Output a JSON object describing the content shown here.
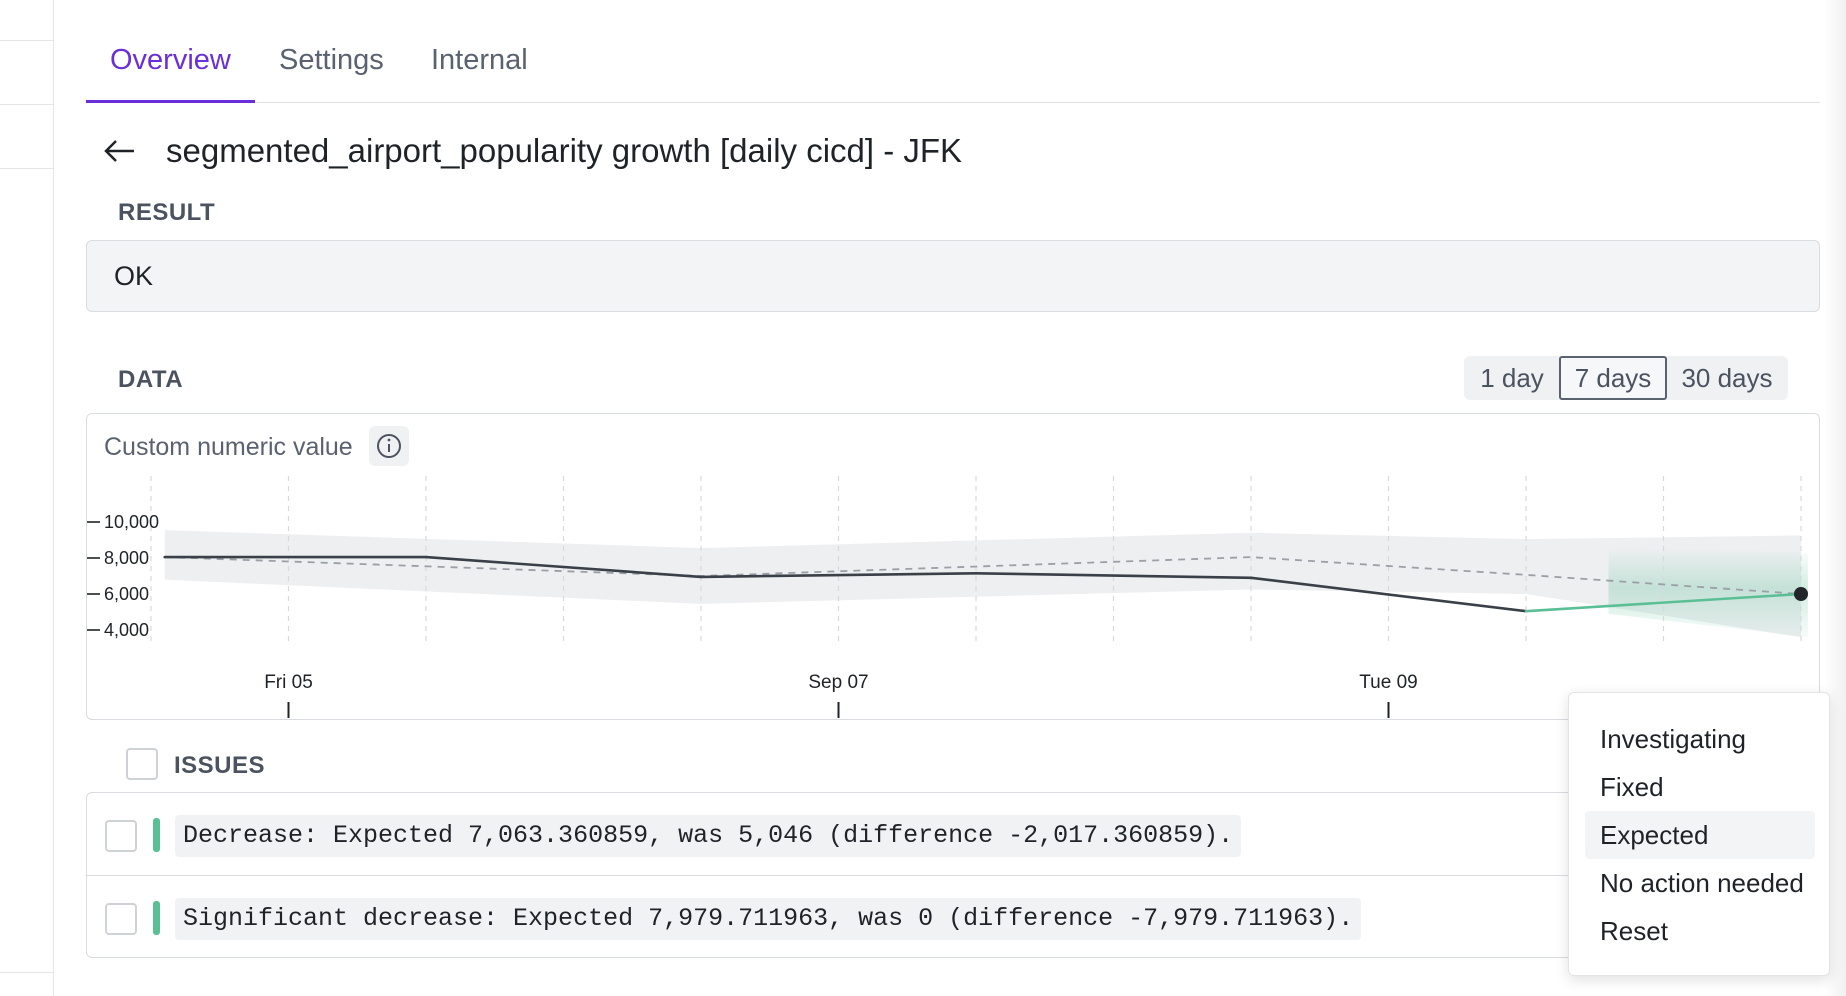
{
  "tabs": [
    {
      "label": "Overview",
      "active": true
    },
    {
      "label": "Settings",
      "active": false
    },
    {
      "label": "Internal",
      "active": false
    }
  ],
  "header": {
    "title": "segmented_airport_popularity growth [daily cicd] - JFK"
  },
  "result": {
    "label": "RESULT",
    "value": "OK"
  },
  "data_section": {
    "label": "DATA",
    "ranges": [
      {
        "label": "1 day",
        "selected": false
      },
      {
        "label": "7 days",
        "selected": true
      },
      {
        "label": "30 days",
        "selected": false
      }
    ]
  },
  "chart_card": {
    "title": "Custom numeric value"
  },
  "chart_data": {
    "type": "line",
    "title": "Custom numeric value",
    "y_ticks": [
      {
        "value": 10000,
        "label": "10,000"
      },
      {
        "value": 8000,
        "label": "8,000"
      },
      {
        "value": 6000,
        "label": "6,000"
      },
      {
        "value": 4000,
        "label": "4,000"
      }
    ],
    "ylim": [
      3500,
      11000
    ],
    "x_labels": [
      {
        "index": 1,
        "label": "Fri 05"
      },
      {
        "index": 5,
        "label": "Sep 07"
      },
      {
        "index": 9,
        "label": "Tue 09"
      }
    ],
    "x_count": 13,
    "grid_x": true,
    "actual": [
      {
        "x": 0.1,
        "y": 8050
      },
      {
        "x": 2,
        "y": 8050
      },
      {
        "x": 4,
        "y": 6950
      },
      {
        "x": 6,
        "y": 7150
      },
      {
        "x": 8,
        "y": 6900
      },
      {
        "x": 10,
        "y": 5046
      },
      {
        "x": 12,
        "y": 6000
      }
    ],
    "highlighted_segments": [
      [
        5,
        6
      ]
    ],
    "expected": [
      {
        "x": 0.1,
        "y": 8050
      },
      {
        "x": 4,
        "y": 7000
      },
      {
        "x": 8,
        "y": 8050
      },
      {
        "x": 10,
        "y": 7063
      },
      {
        "x": 12,
        "y": 6000
      }
    ],
    "band_upper": [
      {
        "x": 0.1,
        "y": 9550
      },
      {
        "x": 4,
        "y": 8550
      },
      {
        "x": 8,
        "y": 9400
      },
      {
        "x": 10,
        "y": 9050
      },
      {
        "x": 12,
        "y": 9250
      }
    ],
    "band_lower": [
      {
        "x": 0.1,
        "y": 6800
      },
      {
        "x": 4,
        "y": 5450
      },
      {
        "x": 8,
        "y": 6250
      },
      {
        "x": 10,
        "y": 6000
      },
      {
        "x": 12,
        "y": 3600
      }
    ],
    "colors": {
      "line": "#3a4048",
      "highlight": "#5bbf95",
      "expected": "#9aa0a6",
      "band": "#eeeff1",
      "band_highlight": "#cfe9dc",
      "grid": "#d6d9dd",
      "axis_text": "#1f2328"
    }
  },
  "issues": {
    "label": "ISSUES",
    "items": [
      {
        "text": "Decrease: Expected 7,063.360859, was 5,046 (difference -2,017.360859)."
      },
      {
        "text": "Significant decrease: Expected 7,979.711963, was 0 (difference -7,979.711963)."
      }
    ]
  },
  "status_menu": {
    "items": [
      {
        "label": "Investigating"
      },
      {
        "label": "Fixed"
      },
      {
        "label": "Expected",
        "hovered": true
      },
      {
        "label": "No action needed"
      },
      {
        "label": "Reset"
      }
    ]
  }
}
